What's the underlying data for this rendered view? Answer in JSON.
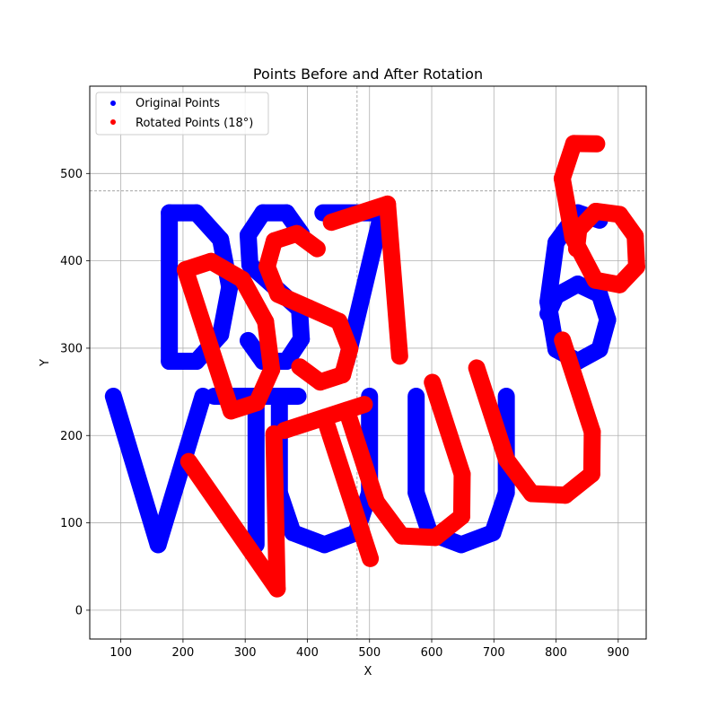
{
  "chart_data": {
    "type": "scatter",
    "title": "Points Before and After Rotation",
    "xlabel": "X",
    "ylabel": "Y",
    "xlim": [
      50,
      945
    ],
    "ylim": [
      -33,
      600
    ],
    "xticks": [
      100,
      200,
      300,
      400,
      500,
      600,
      700,
      800,
      900
    ],
    "yticks": [
      0,
      100,
      200,
      300,
      400,
      500
    ],
    "grid": true,
    "legend_position": "top-left",
    "reference_lines": {
      "x": 480,
      "y": 480
    },
    "series": [
      {
        "name": "Original Points",
        "color": "#0000ff",
        "text": "DS76 VTUU",
        "glyphs": [
          {
            "char": "D",
            "x": [
              178,
              275
            ],
            "y": [
              285,
              455
            ]
          },
          {
            "char": "S",
            "x": [
              300,
              395
            ],
            "y": [
              285,
              455
            ]
          },
          {
            "char": "7",
            "x": [
              425,
              520
            ],
            "y": [
              285,
              455
            ]
          },
          {
            "char": "6",
            "x": [
              785,
              885
            ],
            "y": [
              285,
              455
            ]
          },
          {
            "char": "V",
            "x": [
              88,
              232
            ],
            "y": [
              75,
              245
            ]
          },
          {
            "char": "T",
            "x": [
              250,
              385
            ],
            "y": [
              75,
              245
            ]
          },
          {
            "char": "U",
            "x": [
              355,
              500
            ],
            "y": [
              75,
              245
            ]
          },
          {
            "char": "U",
            "x": [
              575,
              720
            ],
            "y": [
              75,
              245
            ]
          }
        ]
      },
      {
        "name": "Rotated Points (18°)",
        "color": "#ff0000",
        "rotation_degrees": 18
      }
    ]
  },
  "legend": {
    "items": [
      {
        "label": "Original Points",
        "color": "#0000ff"
      },
      {
        "label": "Rotated Points (18°)",
        "color": "#ff0000"
      }
    ]
  }
}
